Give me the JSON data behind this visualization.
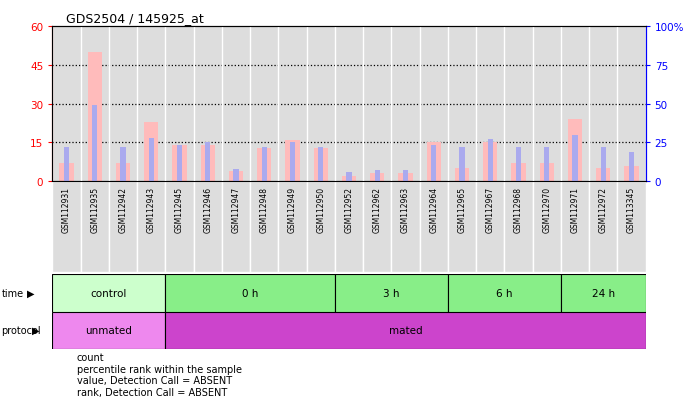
{
  "title": "GDS2504 / 145925_at",
  "samples": [
    "GSM112931",
    "GSM112935",
    "GSM112942",
    "GSM112943",
    "GSM112945",
    "GSM112946",
    "GSM112947",
    "GSM112948",
    "GSM112949",
    "GSM112950",
    "GSM112952",
    "GSM112962",
    "GSM112963",
    "GSM112964",
    "GSM112965",
    "GSM112967",
    "GSM112968",
    "GSM112970",
    "GSM112971",
    "GSM112972",
    "GSM113345"
  ],
  "values": [
    7,
    50,
    7,
    23,
    14,
    14,
    4,
    13,
    16,
    13,
    2,
    3,
    3,
    15,
    5,
    15,
    7,
    7,
    24,
    5,
    6
  ],
  "ranks_pct": [
    22,
    49,
    22,
    28,
    23,
    25,
    8,
    22,
    25,
    22,
    6,
    7,
    7,
    23,
    22,
    27,
    22,
    22,
    30,
    22,
    19
  ],
  "is_absent": [
    true,
    true,
    true,
    true,
    true,
    true,
    true,
    true,
    true,
    true,
    true,
    true,
    true,
    true,
    true,
    true,
    true,
    true,
    true,
    true,
    true
  ],
  "time_groups": [
    {
      "label": "control",
      "start": 0,
      "end": 4,
      "color": "#ccffcc"
    },
    {
      "label": "0 h",
      "start": 4,
      "end": 10,
      "color": "#88ee88"
    },
    {
      "label": "3 h",
      "start": 10,
      "end": 14,
      "color": "#88ee88"
    },
    {
      "label": "6 h",
      "start": 14,
      "end": 18,
      "color": "#88ee88"
    },
    {
      "label": "24 h",
      "start": 18,
      "end": 21,
      "color": "#88ee88"
    }
  ],
  "protocol_groups": [
    {
      "label": "unmated",
      "start": 0,
      "end": 4,
      "color": "#ee88ee"
    },
    {
      "label": "mated",
      "start": 4,
      "end": 21,
      "color": "#cc44cc"
    }
  ],
  "ylim_left": [
    0,
    60
  ],
  "ylim_right": [
    0,
    100
  ],
  "yticks_left": [
    0,
    15,
    30,
    45,
    60
  ],
  "yticks_right": [
    0,
    25,
    50,
    75,
    100
  ],
  "ytick_labels_left": [
    "0",
    "15",
    "30",
    "45",
    "60"
  ],
  "ytick_labels_right": [
    "0",
    "25",
    "50",
    "75",
    "100%"
  ],
  "bar_color_absent": "#ffbbbb",
  "rank_color_absent": "#aaaaee",
  "plot_bg": "#ffffff",
  "col_bg": "#dddddd"
}
